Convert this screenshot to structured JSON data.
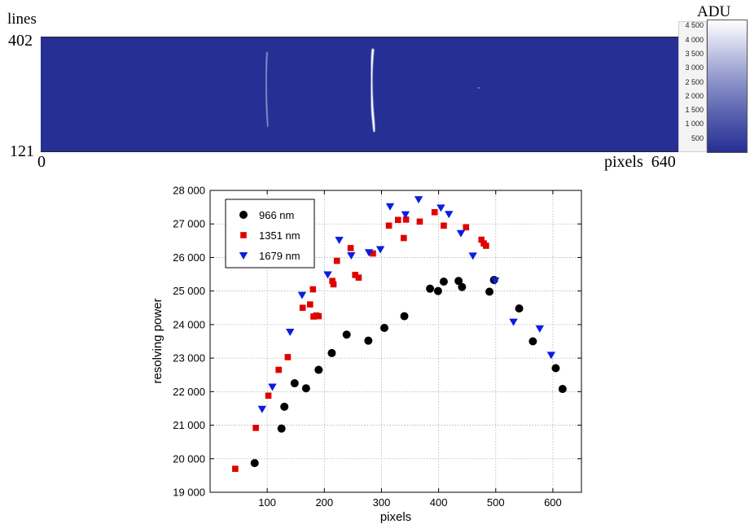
{
  "image_panel": {
    "lines_label": "lines",
    "y_max": "402",
    "y_min": "121",
    "x_min": "0",
    "x_label_and_max": "pixels  640",
    "colorbar_label": "ADU",
    "colorbar_ticks": [
      "4 500",
      "4 000",
      "3 500",
      "3 000",
      "2 500",
      "2 000",
      "1 500",
      "1 000",
      "500"
    ],
    "colorbar_tick_values": [
      4500,
      4000,
      3500,
      3000,
      2500,
      2000,
      1500,
      1000,
      500
    ],
    "colorbar_range": [
      0,
      4600
    ],
    "colors": {
      "background": "#262f94",
      "line": "#ffffff"
    }
  },
  "chart_data": {
    "type": "scatter",
    "title": "",
    "xlabel": "pixels",
    "ylabel": "resolving power",
    "xlim": [
      0,
      650
    ],
    "ylim": [
      19000,
      28000
    ],
    "x_ticks": [
      100,
      200,
      300,
      400,
      500,
      600
    ],
    "y_ticks": [
      19000,
      20000,
      21000,
      22000,
      23000,
      24000,
      25000,
      26000,
      27000,
      28000
    ],
    "y_tick_labels": [
      "19 000",
      "20 000",
      "21 000",
      "22 000",
      "23 000",
      "24 000",
      "25 000",
      "26 000",
      "27 000",
      "28 000"
    ],
    "grid": true,
    "legend_position": "top-left",
    "series": [
      {
        "name": "966 nm",
        "color": "#000000",
        "marker": "circle",
        "points": [
          [
            78,
            19870
          ],
          [
            125,
            20900
          ],
          [
            130,
            21550
          ],
          [
            148,
            22250
          ],
          [
            168,
            22100
          ],
          [
            190,
            22650
          ],
          [
            213,
            23150
          ],
          [
            239,
            23700
          ],
          [
            277,
            23520
          ],
          [
            305,
            23900
          ],
          [
            340,
            24250
          ],
          [
            385,
            25070
          ],
          [
            399,
            25000
          ],
          [
            409,
            25280
          ],
          [
            435,
            25300
          ],
          [
            441,
            25120
          ],
          [
            489,
            24980
          ],
          [
            497,
            25330
          ],
          [
            541,
            24480
          ],
          [
            565,
            23500
          ],
          [
            605,
            22700
          ],
          [
            617,
            22080
          ]
        ]
      },
      {
        "name": "1351 nm",
        "color": "#e00000",
        "marker": "square",
        "points": [
          [
            44,
            19700
          ],
          [
            80,
            20920
          ],
          [
            102,
            21880
          ],
          [
            120,
            22650
          ],
          [
            136,
            23030
          ],
          [
            162,
            24500
          ],
          [
            175,
            24600
          ],
          [
            180,
            25050
          ],
          [
            181,
            24240
          ],
          [
            186,
            24270
          ],
          [
            190,
            24250
          ],
          [
            214,
            25300
          ],
          [
            216,
            25200
          ],
          [
            222,
            25900
          ],
          [
            246,
            26280
          ],
          [
            254,
            25480
          ],
          [
            260,
            25400
          ],
          [
            285,
            26120
          ],
          [
            313,
            26950
          ],
          [
            329,
            27120
          ],
          [
            339,
            26580
          ],
          [
            343,
            27130
          ],
          [
            367,
            27070
          ],
          [
            393,
            27350
          ],
          [
            409,
            26950
          ],
          [
            448,
            26900
          ],
          [
            475,
            26530
          ],
          [
            479,
            26420
          ],
          [
            483,
            26350
          ]
        ]
      },
      {
        "name": "1679 nm",
        "color": "#0a1ee0",
        "marker": "triangle-down",
        "points": [
          [
            91,
            21480
          ],
          [
            109,
            22140
          ],
          [
            140,
            23780
          ],
          [
            161,
            24880
          ],
          [
            206,
            25490
          ],
          [
            226,
            26520
          ],
          [
            247,
            26060
          ],
          [
            278,
            26150
          ],
          [
            298,
            26240
          ],
          [
            315,
            27520
          ],
          [
            342,
            27280
          ],
          [
            365,
            27730
          ],
          [
            404,
            27480
          ],
          [
            418,
            27290
          ],
          [
            439,
            26720
          ],
          [
            460,
            26050
          ],
          [
            499,
            25310
          ],
          [
            531,
            24080
          ],
          [
            577,
            23880
          ],
          [
            597,
            23090
          ]
        ]
      }
    ]
  }
}
